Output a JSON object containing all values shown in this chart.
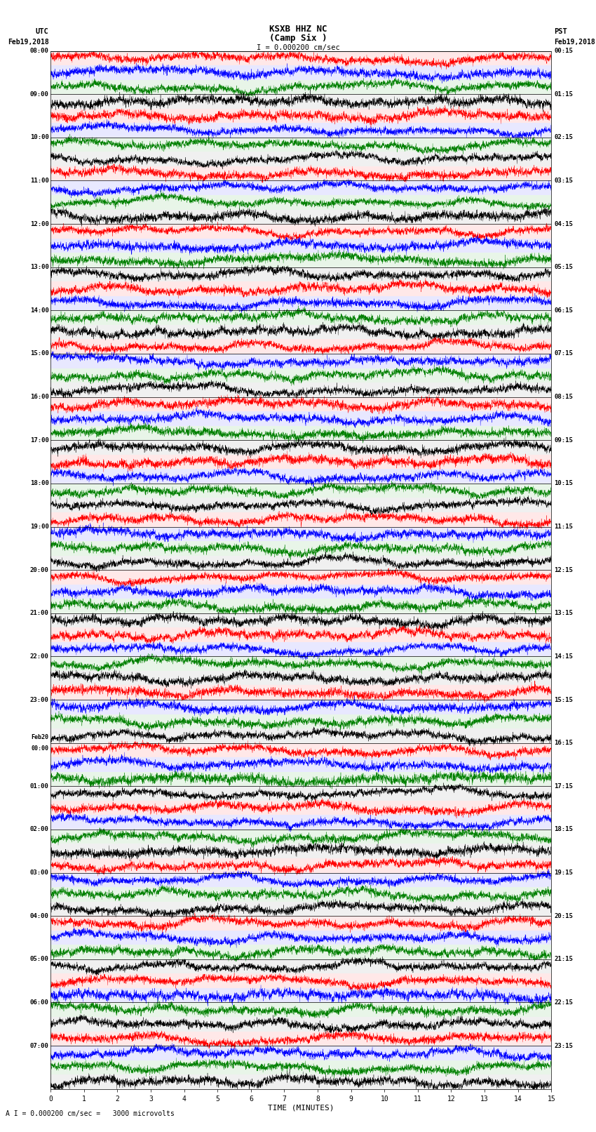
{
  "title_line1": "KSXB HHZ NC",
  "title_line2": "(Camp Six )",
  "scale_label": "I = 0.000200 cm/sec",
  "bottom_label": "A I = 0.000200 cm/sec =   3000 microvolts",
  "xlabel": "TIME (MINUTES)",
  "left_label_top": "UTC",
  "left_label_date": "Feb19,2018",
  "right_label_top": "PST",
  "right_label_date": "Feb19,2018",
  "utc_times": [
    "08:00",
    "09:00",
    "10:00",
    "11:00",
    "12:00",
    "13:00",
    "14:00",
    "15:00",
    "16:00",
    "17:00",
    "18:00",
    "19:00",
    "20:00",
    "21:00",
    "22:00",
    "23:00",
    "Feb20\n00:00",
    "01:00",
    "02:00",
    "03:00",
    "04:00",
    "05:00",
    "06:00",
    "07:00"
  ],
  "pst_times": [
    "00:15",
    "01:15",
    "02:15",
    "03:15",
    "04:15",
    "05:15",
    "06:15",
    "07:15",
    "08:15",
    "09:15",
    "10:15",
    "11:15",
    "12:15",
    "13:15",
    "14:15",
    "15:15",
    "16:15",
    "17:15",
    "18:15",
    "19:15",
    "20:15",
    "21:15",
    "22:15",
    "23:15"
  ],
  "n_rows": 24,
  "traces_per_row": 3,
  "minutes": 15,
  "colors": [
    "red",
    "blue",
    "green",
    "black"
  ],
  "figsize": [
    8.5,
    16.13
  ],
  "dpi": 100
}
